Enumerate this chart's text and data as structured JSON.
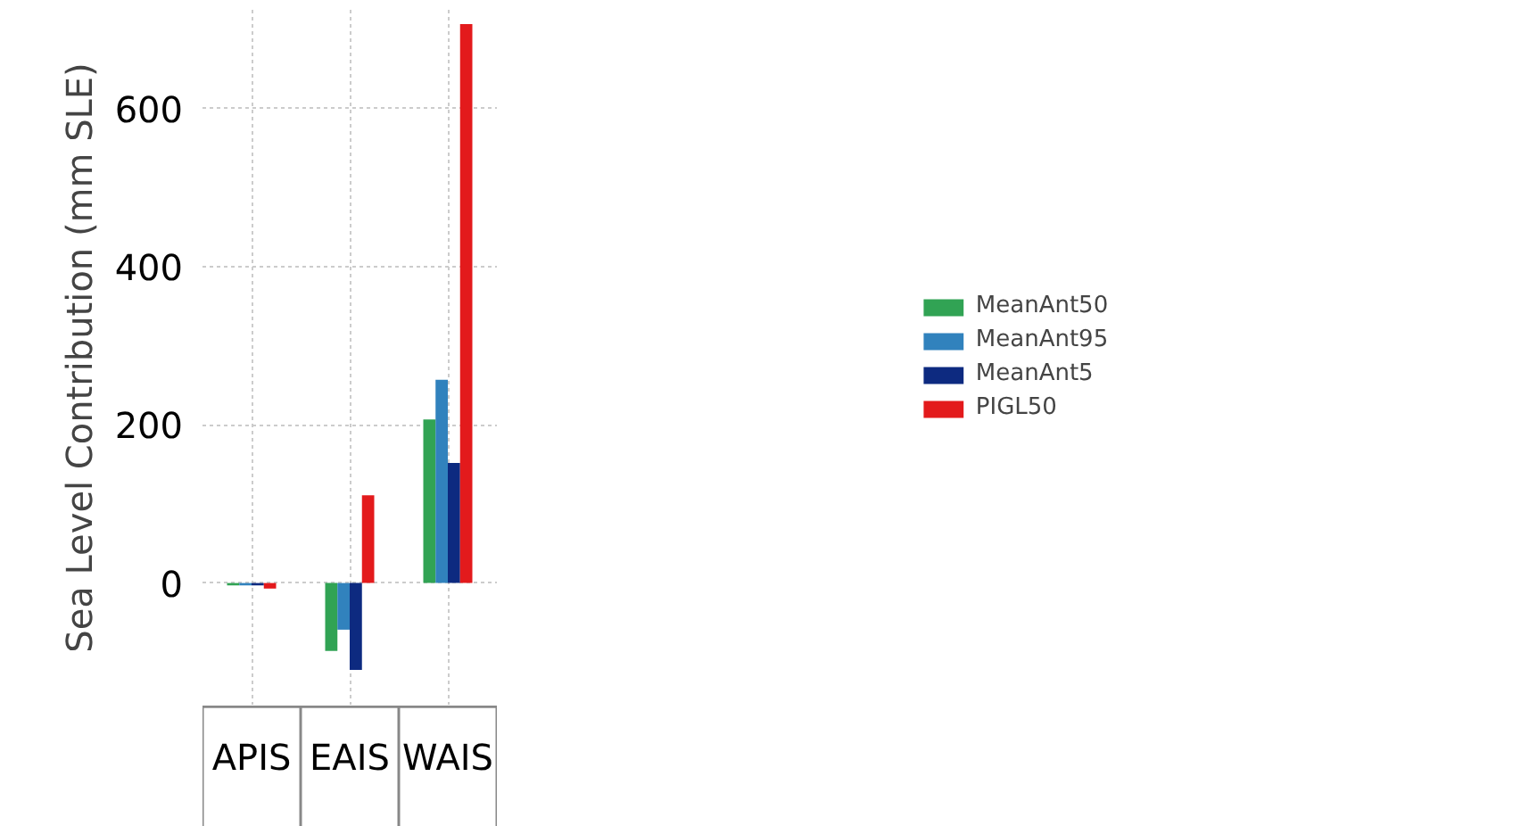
{
  "chart_data": {
    "type": "bar",
    "ylabel": "Sea Level Contribution (mm SLE)",
    "categories": [
      "APIS",
      "EAIS",
      "WAIS"
    ],
    "series": [
      {
        "name": "MeanAnt50",
        "color": "#31a354",
        "values": [
          -3,
          -86,
          207
        ]
      },
      {
        "name": "MeanAnt95",
        "color": "#3182bd",
        "values": [
          -3,
          -59,
          257
        ]
      },
      {
        "name": "MeanAnt5",
        "color": "#0d2a80",
        "values": [
          -3,
          -110,
          152
        ]
      },
      {
        "name": "PIGL50",
        "color": "#e31a1c",
        "values": [
          -7,
          111,
          707
        ]
      }
    ],
    "ylim": [
      -155,
      725
    ],
    "yticks": [
      0,
      200,
      400,
      600
    ],
    "grid": true,
    "legend": "right"
  }
}
